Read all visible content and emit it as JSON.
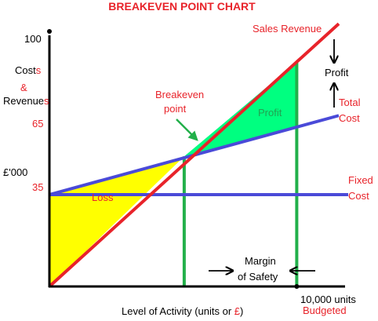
{
  "colors": {
    "sales": "#e8232a",
    "total_cost": "#4a4ad8",
    "fixed_cost": "#4a4ad8",
    "profit_fill": "#00ff80",
    "loss_fill": "#ffff00",
    "marker": "#22b04a",
    "axis": "#000000",
    "red_text": "#e8232a",
    "black_text": "#000000"
  },
  "chart_data": {
    "type": "line",
    "title": "BREAKEVEN POINT CHART",
    "ylabel": {
      "part1": "Costs",
      "part2": "&",
      "part3": "Revenues",
      "unit": "£'000"
    },
    "xlabel": {
      "main": "Level of Activity (units or ",
      "currency": "£",
      "close": ")"
    },
    "x_range": [
      0,
      11700
    ],
    "y_range": [
      0,
      100
    ],
    "y_ticks": [
      {
        "value": 100,
        "label": "100"
      },
      {
        "value": 65,
        "label": "65"
      },
      {
        "value": 35,
        "label": "35"
      }
    ],
    "x_tick": {
      "value": 10000,
      "label": "10,000 units",
      "sublabel": "Budgeted"
    },
    "series": [
      {
        "name": "Sales Revenue",
        "points": [
          [
            0,
            0
          ],
          [
            11700,
            103
          ]
        ]
      },
      {
        "name": "Total Cost",
        "points": [
          [
            0,
            36
          ],
          [
            11700,
            67
          ]
        ]
      },
      {
        "name": "Fixed Cost",
        "points": [
          [
            0,
            36
          ],
          [
            11700,
            36
          ]
        ]
      }
    ],
    "breakeven": {
      "x": 5450,
      "y": 51
    },
    "budget_line_x": 10000,
    "regions": {
      "loss": "Loss",
      "profit": "Profit"
    }
  },
  "labels": {
    "sales_revenue": "Sales Revenue",
    "total_cost_line1": "Total",
    "total_cost_line2": "Cost",
    "fixed_cost_line1": "Fixed",
    "fixed_cost_line2": "Cost",
    "breakeven_line1": "Breakeven",
    "breakeven_line2": "point",
    "profit_side": "Profit",
    "margin_line1": "Margin",
    "margin_line2": "of Safety"
  }
}
